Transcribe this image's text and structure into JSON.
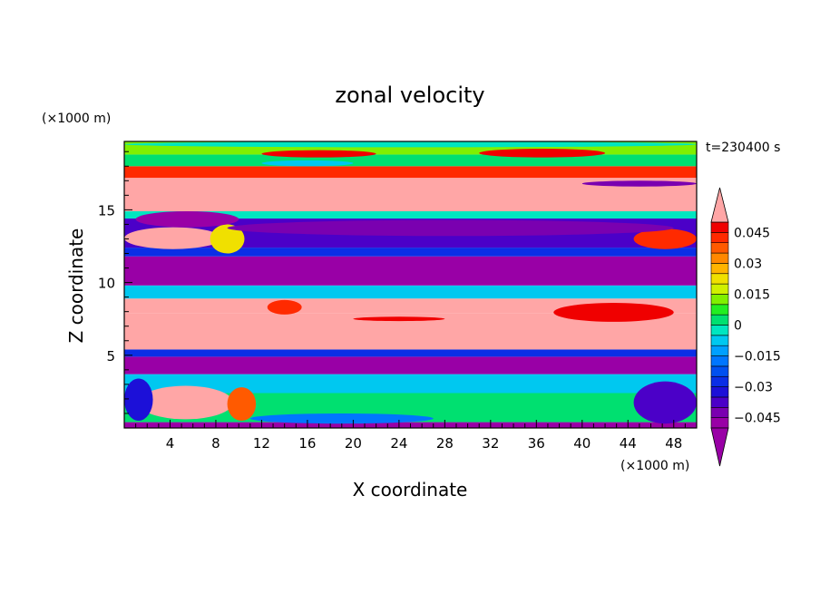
{
  "chart_data": {
    "type": "heatmap",
    "title": "zonal velocity",
    "xlabel": "X coordinate",
    "ylabel": "Z coordinate",
    "x_unit": "(×1000 m)",
    "y_unit": "(×1000 m)",
    "time_label": "t=230400 s",
    "xlim": [
      0,
      50
    ],
    "ylim": [
      0,
      19.7
    ],
    "x_ticks": [
      4,
      8,
      12,
      16,
      20,
      24,
      28,
      32,
      36,
      40,
      44,
      48
    ],
    "y_ticks": [
      5,
      10,
      15
    ],
    "colorbar": {
      "levels": [
        -0.05,
        -0.045,
        -0.04,
        -0.035,
        -0.03,
        -0.025,
        -0.02,
        -0.015,
        -0.01,
        -0.005,
        0,
        0.005,
        0.01,
        0.015,
        0.02,
        0.025,
        0.03,
        0.035,
        0.04,
        0.045,
        0.05
      ],
      "tick_labels": [
        "0.045",
        "0.03",
        "0.015",
        "0",
        "−0.015",
        "−0.03",
        "−0.045"
      ],
      "tick_values": [
        0.045,
        0.03,
        0.015,
        0,
        -0.015,
        -0.03,
        -0.045
      ],
      "colors": [
        "#9900a6",
        "#7a00b0",
        "#4b00c8",
        "#1c10d8",
        "#0a2ee6",
        "#0050f0",
        "#0076ff",
        "#00a0ff",
        "#00c8f0",
        "#00e6c0",
        "#00e070",
        "#22ee22",
        "#80f000",
        "#d0f000",
        "#f0e000",
        "#ffb400",
        "#ff8800",
        "#ff5a00",
        "#ff2a00",
        "#f00000"
      ],
      "over_color": "#ffa6a6",
      "under_color": "#9900a6"
    },
    "bands": [
      {
        "z0": 0.0,
        "z1": 0.4,
        "value": -0.05
      },
      {
        "z0": 0.4,
        "z1": 2.4,
        "value": 0.0
      },
      {
        "z0": 2.4,
        "z1": 3.7,
        "value": -0.01
      },
      {
        "z0": 3.7,
        "z1": 4.9,
        "value": -0.05
      },
      {
        "z0": 4.9,
        "z1": 5.4,
        "value": -0.03
      },
      {
        "z0": 5.4,
        "z1": 7.9,
        "value": 0.06
      },
      {
        "z0": 7.9,
        "z1": 8.9,
        "value": 0.06
      },
      {
        "z0": 8.9,
        "z1": 9.8,
        "value": -0.01
      },
      {
        "z0": 9.8,
        "z1": 11.8,
        "value": -0.05
      },
      {
        "z0": 11.8,
        "z1": 12.4,
        "value": -0.03
      },
      {
        "z0": 12.4,
        "z1": 14.4,
        "value": -0.04
      },
      {
        "z0": 14.4,
        "z1": 14.9,
        "value": -0.005
      },
      {
        "z0": 14.9,
        "z1": 17.2,
        "value": 0.06
      },
      {
        "z0": 17.2,
        "z1": 18.0,
        "value": 0.04
      },
      {
        "z0": 18.0,
        "z1": 18.8,
        "value": 0.0
      },
      {
        "z0": 18.8,
        "z1": 19.7,
        "value": 0.01
      }
    ],
    "features": [
      {
        "x0": 1.2,
        "x1": 9.5,
        "z0": 0.6,
        "z1": 2.9,
        "value": 0.06
      },
      {
        "x0": 9.0,
        "x1": 11.5,
        "z0": 0.5,
        "z1": 2.8,
        "value": 0.035
      },
      {
        "x0": 44.5,
        "x1": 50.0,
        "z0": 0.3,
        "z1": 3.2,
        "value": -0.04
      },
      {
        "x0": 0.0,
        "x1": 2.5,
        "z0": 0.5,
        "z1": 3.4,
        "value": -0.035
      },
      {
        "x0": 11.0,
        "x1": 27.0,
        "z0": 0.3,
        "z1": 1.0,
        "value": -0.02
      },
      {
        "x0": 12.5,
        "x1": 15.5,
        "z0": 7.8,
        "z1": 8.8,
        "value": 0.04
      },
      {
        "x0": 37.5,
        "x1": 48.0,
        "z0": 7.3,
        "z1": 8.6,
        "value": 0.045
      },
      {
        "x0": 20.0,
        "x1": 28.0,
        "z0": 7.35,
        "z1": 7.65,
        "value": 0.045
      },
      {
        "x0": 0.0,
        "x1": 8.5,
        "z0": 12.3,
        "z1": 13.8,
        "value": 0.06
      },
      {
        "x0": 7.5,
        "x1": 10.5,
        "z0": 12.0,
        "z1": 14.0,
        "value": 0.02
      },
      {
        "x0": 44.5,
        "x1": 50.0,
        "z0": 12.3,
        "z1": 13.7,
        "value": 0.04
      },
      {
        "x0": 1.0,
        "x1": 10.0,
        "z0": 13.8,
        "z1": 14.9,
        "value": -0.05
      },
      {
        "x0": 9.0,
        "x1": 48.0,
        "z0": 13.2,
        "z1": 14.3,
        "value": -0.045
      },
      {
        "x0": 12.0,
        "x1": 22.0,
        "z0": 18.6,
        "z1": 19.1,
        "value": 0.045
      },
      {
        "x0": 31.0,
        "x1": 42.0,
        "z0": 18.6,
        "z1": 19.2,
        "value": 0.045
      },
      {
        "x0": 12.0,
        "x1": 20.0,
        "z0": 18.0,
        "z1": 18.4,
        "value": -0.01
      },
      {
        "x0": 40.0,
        "x1": 50.0,
        "z0": 16.6,
        "z1": 17.0,
        "value": -0.045
      },
      {
        "x0": 0.0,
        "x1": 50.0,
        "z0": 19.3,
        "z1": 19.7,
        "value": -0.005
      }
    ]
  }
}
